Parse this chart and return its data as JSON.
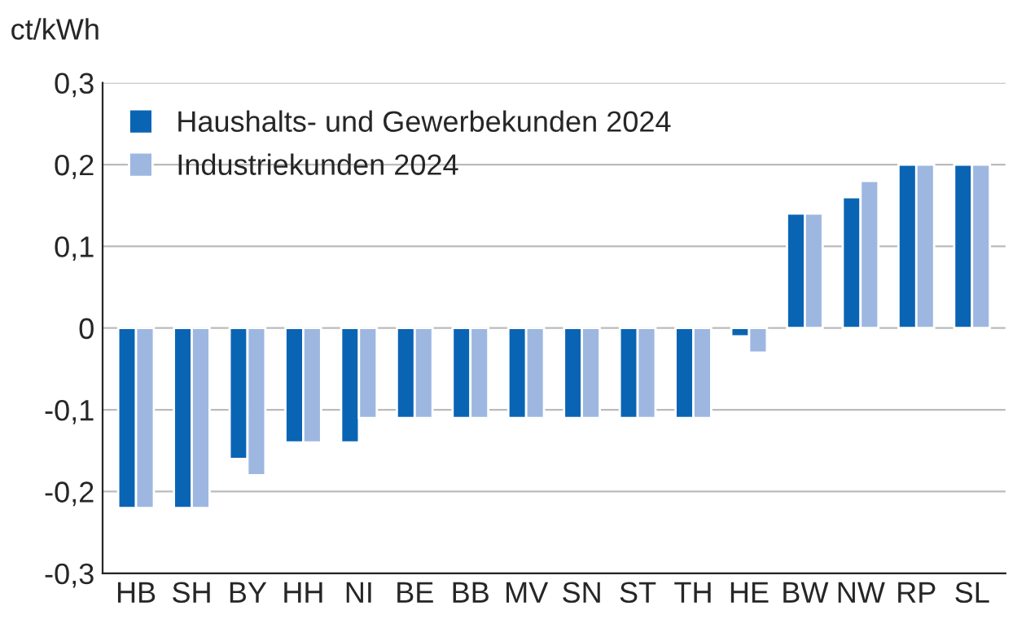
{
  "chart_data": {
    "type": "bar",
    "ylabel": "ct/kWh",
    "categories": [
      "HB",
      "SH",
      "BY",
      "HH",
      "NI",
      "BE",
      "BB",
      "MV",
      "SN",
      "ST",
      "TH",
      "HE",
      "BW",
      "NW",
      "RP",
      "SL"
    ],
    "series": [
      {
        "name": "Haushalts- und Gewerbekunden 2024",
        "color": "#0a64b4",
        "values": [
          -0.22,
          -0.22,
          -0.16,
          -0.14,
          -0.14,
          -0.11,
          -0.11,
          -0.11,
          -0.11,
          -0.11,
          -0.11,
          -0.01,
          0.14,
          0.16,
          0.2,
          0.2
        ]
      },
      {
        "name": "Industriekunden 2024",
        "color": "#9db7e0",
        "values": [
          -0.22,
          -0.22,
          -0.18,
          -0.14,
          -0.11,
          -0.11,
          -0.11,
          -0.11,
          -0.11,
          -0.11,
          -0.11,
          -0.03,
          0.14,
          0.18,
          0.2,
          0.2
        ]
      }
    ],
    "ylim": [
      -0.3,
      0.3
    ],
    "yticks": [
      {
        "value": -0.3,
        "label": "-0,3"
      },
      {
        "value": -0.2,
        "label": "-0,2"
      },
      {
        "value": -0.1,
        "label": "-0,1"
      },
      {
        "value": 0,
        "label": "0"
      },
      {
        "value": 0.1,
        "label": "0,1"
      },
      {
        "value": 0.2,
        "label": "0,2"
      },
      {
        "value": 0.3,
        "label": "0,3"
      }
    ],
    "grid": "y",
    "legend": "top left"
  }
}
